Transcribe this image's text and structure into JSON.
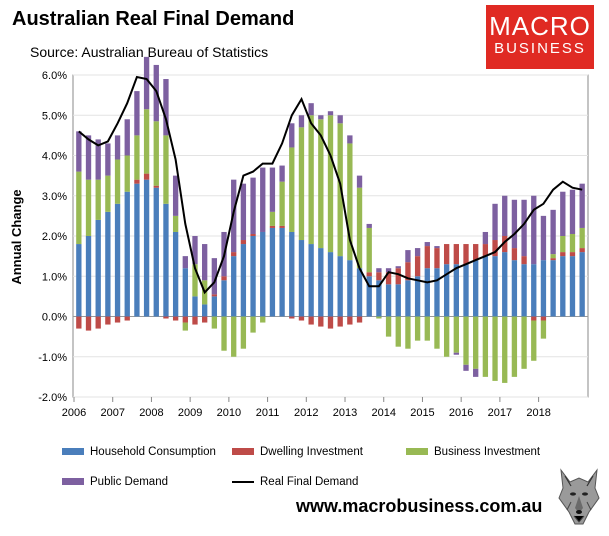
{
  "header": {
    "title": "Australian Real Final Demand",
    "source": "Source: Australian Bureau of Statistics"
  },
  "logo": {
    "line1": "MACRO",
    "line2": "BUSINESS",
    "bg": "#e02a23"
  },
  "website": "www.macrobusiness.com.au",
  "legend": {
    "household": "Household Consumption",
    "dwelling": "Dwelling Investment",
    "business": "Business Investment",
    "public": "Public Demand",
    "rfd": "Real Final Demand"
  },
  "chart_data": {
    "type": "bar",
    "title": "Australian Real Final Demand",
    "ylabel": "Annual Change",
    "xlabel": "",
    "ylim": [
      -2.0,
      6.0
    ],
    "yticks": [
      "-2.0%",
      "-1.0%",
      "0.0%",
      "1.0%",
      "2.0%",
      "3.0%",
      "4.0%",
      "5.0%",
      "6.0%"
    ],
    "xticks": [
      "2006",
      "2007",
      "2008",
      "2009",
      "2010",
      "2011",
      "2012",
      "2013",
      "2014",
      "2015",
      "2016",
      "2017",
      "2018"
    ],
    "first_quarter": "2006 Q1",
    "colors": {
      "household": "#4a7ebb",
      "dwelling": "#be4b48",
      "business": "#98b954",
      "public": "#7d60a0",
      "rfd": "#000000"
    },
    "series": [
      {
        "name": "Household Consumption",
        "key": "household",
        "values": [
          1.8,
          2.0,
          2.4,
          2.6,
          2.8,
          3.1,
          3.3,
          3.4,
          3.2,
          2.8,
          2.1,
          1.2,
          0.5,
          0.3,
          0.5,
          0.9,
          1.5,
          1.8,
          2.0,
          2.1,
          2.2,
          2.2,
          2.1,
          1.9,
          1.8,
          1.7,
          1.6,
          1.5,
          1.4,
          1.2,
          1.0,
          0.9,
          0.8,
          0.8,
          0.9,
          1.0,
          1.2,
          1.2,
          1.3,
          1.3,
          1.3,
          1.4,
          1.5,
          1.5,
          1.6,
          1.4,
          1.3,
          1.3,
          1.4,
          1.4,
          1.5,
          1.5,
          1.6
        ]
      },
      {
        "name": "Dwelling Investment",
        "key": "dwelling",
        "values": [
          -0.3,
          -0.35,
          -0.3,
          -0.2,
          -0.15,
          -0.1,
          0.1,
          0.15,
          0.05,
          -0.05,
          -0.1,
          -0.15,
          -0.2,
          -0.15,
          0.05,
          0.1,
          0.1,
          0.1,
          0.05,
          0.0,
          0.05,
          0.05,
          -0.05,
          -0.1,
          -0.2,
          -0.25,
          -0.3,
          -0.25,
          -0.2,
          -0.15,
          0.1,
          0.2,
          0.3,
          0.4,
          0.45,
          0.5,
          0.55,
          0.5,
          0.5,
          0.5,
          0.5,
          0.4,
          0.3,
          0.4,
          0.4,
          0.3,
          0.2,
          -0.1,
          -0.1,
          0.05,
          0.1,
          0.1,
          0.1
        ]
      },
      {
        "name": "Business Investment",
        "key": "business",
        "values": [
          1.8,
          1.4,
          1.0,
          0.9,
          1.1,
          0.9,
          1.1,
          1.6,
          1.6,
          1.7,
          0.4,
          -0.2,
          0.8,
          0.6,
          -0.3,
          -0.85,
          -1.0,
          -0.8,
          -0.4,
          -0.15,
          0.35,
          1.1,
          2.1,
          2.8,
          3.2,
          3.2,
          3.4,
          3.3,
          2.9,
          2.0,
          1.1,
          -0.05,
          -0.5,
          -0.75,
          -0.8,
          -0.6,
          -0.6,
          -0.8,
          -1.0,
          -0.9,
          -1.2,
          -1.3,
          -1.5,
          -1.6,
          -1.65,
          -1.5,
          -1.3,
          -1.0,
          -0.45,
          0.1,
          0.4,
          0.45,
          0.5
        ]
      },
      {
        "name": "Public Demand",
        "key": "public",
        "values": [
          1.0,
          1.1,
          1.0,
          0.8,
          0.6,
          0.9,
          1.1,
          1.3,
          1.4,
          1.4,
          1.0,
          0.3,
          0.7,
          0.9,
          0.9,
          1.1,
          1.8,
          1.4,
          1.4,
          1.6,
          1.1,
          0.4,
          0.6,
          0.3,
          0.3,
          0.1,
          0.1,
          0.2,
          0.2,
          0.3,
          0.1,
          0.1,
          0.1,
          0.05,
          0.3,
          0.2,
          0.1,
          0.05,
          0.0,
          -0.05,
          -0.15,
          -0.2,
          0.3,
          0.9,
          1.0,
          1.2,
          1.4,
          1.7,
          1.1,
          1.1,
          1.1,
          1.1,
          1.1
        ]
      },
      {
        "name": "Real Final Demand",
        "key": "rfd",
        "type": "line",
        "values": [
          4.6,
          4.4,
          4.25,
          4.35,
          4.8,
          5.3,
          5.95,
          5.9,
          5.6,
          4.9,
          3.9,
          2.3,
          1.2,
          0.6,
          0.85,
          1.5,
          2.6,
          3.5,
          3.6,
          3.8,
          3.8,
          4.3,
          5.0,
          5.4,
          4.8,
          4.5,
          4.0,
          3.3,
          1.9,
          1.2,
          0.75,
          0.75,
          1.1,
          1.05,
          0.95,
          0.9,
          0.85,
          0.9,
          1.05,
          1.2,
          1.3,
          1.4,
          1.5,
          1.6,
          1.85,
          2.05,
          2.3,
          2.65,
          2.8,
          3.15,
          3.35,
          3.2,
          3.15
        ]
      }
    ]
  }
}
